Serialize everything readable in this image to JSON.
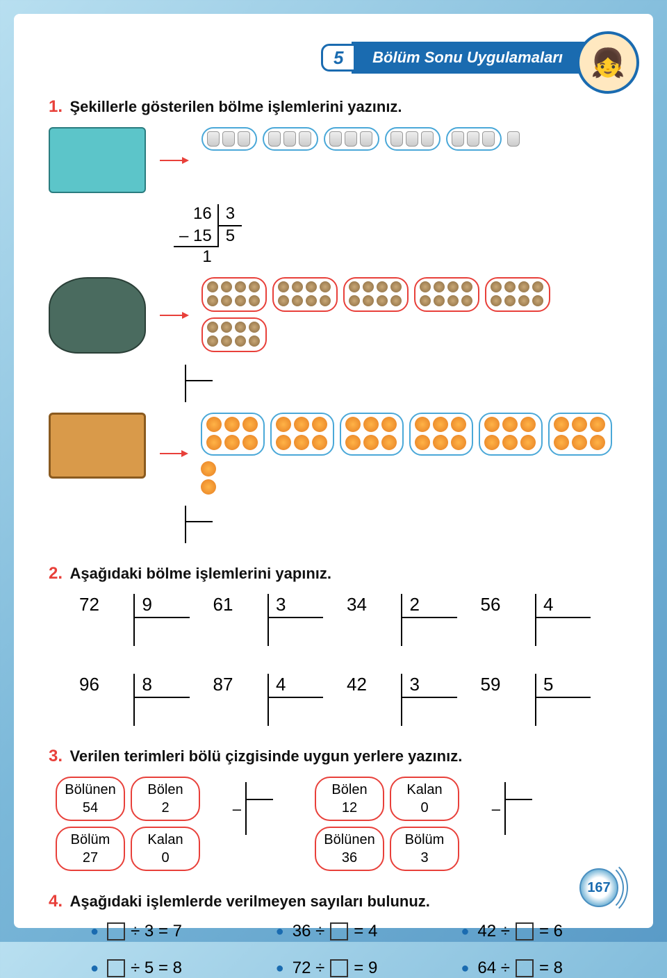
{
  "header": {
    "chapter_num": "5",
    "title": "Bölüm Sonu Uygulamaları"
  },
  "page_number": "167",
  "q1": {
    "num": "1.",
    "text": "Şekillerle gösterilen bölme işlemlerini yazınız.",
    "rows": [
      {
        "source": "box",
        "group_class": "cups",
        "item_class": "cup",
        "group_count": 5,
        "per_group": 3,
        "remainder_items": 1,
        "group_border": "#4aa8d8",
        "division": {
          "dividend": "16",
          "divisor": "3",
          "sub": "–   15",
          "quotient": "5",
          "remainder": "1"
        }
      },
      {
        "source": "sack",
        "group_class": "nuts",
        "item_class": "nut",
        "group_count": 6,
        "per_group": 8,
        "remainder_items": 0,
        "group_border": "#e8403a",
        "division": null
      },
      {
        "source": "crate",
        "group_class": "oranges",
        "item_class": "orange",
        "group_count": 6,
        "per_group": 6,
        "remainder_items": 2,
        "group_border": "#4aa8d8",
        "division": null
      }
    ]
  },
  "q2": {
    "num": "2.",
    "text": "Aşağıdaki bölme işlemlerini yapınız.",
    "problems": [
      {
        "dividend": "72",
        "divisor": "9"
      },
      {
        "dividend": "61",
        "divisor": "3"
      },
      {
        "dividend": "34",
        "divisor": "2"
      },
      {
        "dividend": "56",
        "divisor": "4"
      },
      {
        "dividend": "96",
        "divisor": "8"
      },
      {
        "dividend": "87",
        "divisor": "4"
      },
      {
        "dividend": "42",
        "divisor": "3"
      },
      {
        "dividend": "59",
        "divisor": "5"
      }
    ]
  },
  "q3": {
    "num": "3.",
    "text": "Verilen terimleri bölü çizgisinde uygun yerlere yazınız.",
    "sets": [
      {
        "pills": [
          {
            "label": "Bölünen",
            "value": "54"
          },
          {
            "label": "Bölen",
            "value": "2"
          },
          {
            "label": "Bölüm",
            "value": "27"
          },
          {
            "label": "Kalan",
            "value": "0"
          }
        ],
        "minus": "–"
      },
      {
        "pills": [
          {
            "label": "Bölen",
            "value": "12"
          },
          {
            "label": "Kalan",
            "value": "0"
          },
          {
            "label": "Bölünen",
            "value": "36"
          },
          {
            "label": "Bölüm",
            "value": "3"
          }
        ],
        "minus": "–"
      }
    ]
  },
  "q4": {
    "num": "4.",
    "text": "Aşağıdaki işlemlerde verilmeyen sayıları bulunuz.",
    "items": [
      {
        "pre": "",
        "mid": " ÷ 3 = 7",
        "blank_pos": "start"
      },
      {
        "pre": "36 ÷ ",
        "mid": " = 4",
        "blank_pos": "mid"
      },
      {
        "pre": "42 ÷ ",
        "mid": " = 6",
        "blank_pos": "mid"
      },
      {
        "pre": "",
        "mid": " ÷ 5 = 8",
        "blank_pos": "start"
      },
      {
        "pre": "72 ÷ ",
        "mid": " = 9",
        "blank_pos": "mid"
      },
      {
        "pre": "64 ÷ ",
        "mid": " = 8",
        "blank_pos": "mid"
      }
    ]
  },
  "colors": {
    "accent_red": "#e8403a",
    "accent_blue": "#1a6bb0",
    "bg_gradient_start": "#b8dff0",
    "bg_gradient_end": "#5a9bc7"
  }
}
